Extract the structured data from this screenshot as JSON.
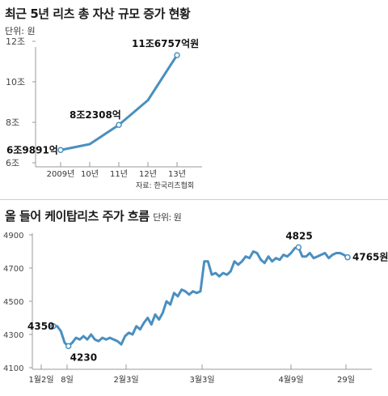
{
  "chart_data": [
    {
      "type": "line",
      "title": "최근 5년 리츠 총 자산 규모 증가 현황",
      "unit": "단위: 원",
      "source": "자료: 한국리츠협회",
      "categories": [
        "2009년",
        "10년",
        "11년",
        "12년",
        "13년"
      ],
      "values": [
        69891,
        72800,
        82308,
        94500,
        116757
      ],
      "ytick_labels": [
        "6조",
        "8조",
        "10조",
        "12조"
      ],
      "ylim": [
        60000,
        120000
      ],
      "ylim_unit": "억원",
      "annotations": [
        "6조9891억",
        "8조2308억",
        "11조6757억원"
      ],
      "colors": {
        "line": "#4a8fc0"
      }
    },
    {
      "type": "line",
      "title": "올 들어 케이탑리츠 주가 흐름",
      "unit": "단위: 원",
      "x_labels": [
        "1월2일",
        "8일",
        "2월3일",
        "3월3일",
        "4월9일",
        "29일"
      ],
      "ytick_labels": [
        "4100",
        "4300",
        "4500",
        "4700",
        "4900"
      ],
      "ylim": [
        4100,
        4900
      ],
      "values": [
        4350,
        4350,
        4320,
        4250,
        4230,
        4250,
        4280,
        4270,
        4290,
        4270,
        4300,
        4270,
        4260,
        4280,
        4270,
        4280,
        4270,
        4260,
        4240,
        4290,
        4310,
        4300,
        4350,
        4330,
        4370,
        4400,
        4360,
        4420,
        4390,
        4430,
        4500,
        4480,
        4550,
        4530,
        4570,
        4560,
        4540,
        4560,
        4550,
        4560,
        4740,
        4740,
        4660,
        4670,
        4650,
        4670,
        4660,
        4680,
        4740,
        4720,
        4740,
        4770,
        4760,
        4800,
        4790,
        4750,
        4730,
        4770,
        4740,
        4760,
        4750,
        4780,
        4770,
        4790,
        4820,
        4825,
        4770,
        4770,
        4790,
        4760,
        4770,
        4780,
        4790,
        4760,
        4780,
        4790,
        4790,
        4780,
        4765
      ],
      "annotations": [
        "4350",
        "4230",
        "4825",
        "4765원"
      ],
      "colors": {
        "line": "#4a8fc0"
      }
    }
  ]
}
